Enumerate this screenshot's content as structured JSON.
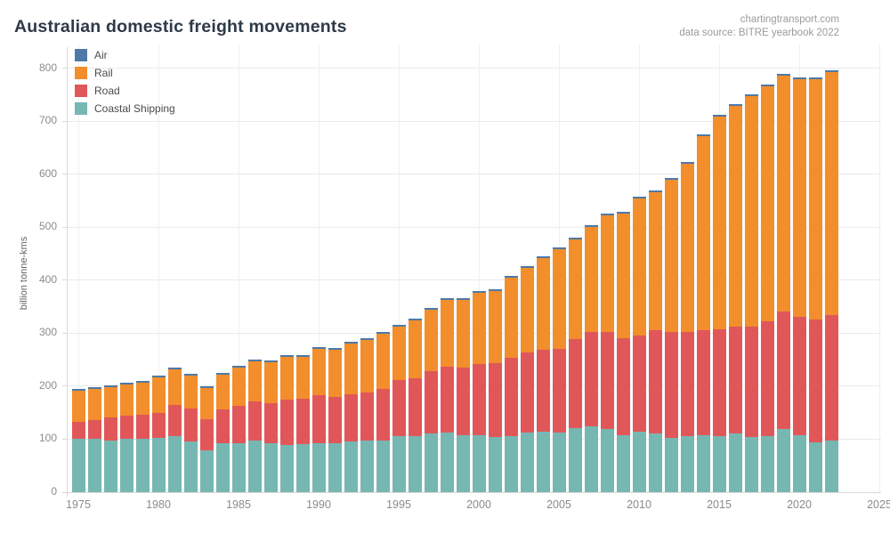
{
  "header": {
    "title": "Australian domestic freight movements",
    "credit_line1": "chartingtransport.com",
    "credit_line2": "data source: BITRE yearbook 2022"
  },
  "legend": {
    "position": "top-left",
    "items": [
      {
        "label": "Air",
        "color": "#4e79a7"
      },
      {
        "label": "Rail",
        "color": "#f28e2b"
      },
      {
        "label": "Road",
        "color": "#e15759"
      },
      {
        "label": "Coastal Shipping",
        "color": "#76b7b2"
      }
    ]
  },
  "y_axis": {
    "label": "billion tonne-kms",
    "ticks": [
      0,
      100,
      200,
      300,
      400,
      500,
      600,
      700,
      800
    ]
  },
  "x_axis": {
    "ticks": [
      1975,
      1980,
      1985,
      1990,
      1995,
      2000,
      2005,
      2010,
      2015,
      2020,
      2025
    ]
  },
  "chart_data": {
    "type": "bar",
    "stacked": true,
    "title": "Australian domestic freight movements",
    "xlabel": "",
    "ylabel": "billion tonne-kms",
    "ylim": [
      0,
      800
    ],
    "xlim": [
      1974,
      2025
    ],
    "grid": true,
    "legend_position": "top-left",
    "x": [
      1975,
      1976,
      1977,
      1978,
      1979,
      1980,
      1981,
      1982,
      1983,
      1984,
      1985,
      1986,
      1987,
      1988,
      1989,
      1990,
      1991,
      1992,
      1993,
      1994,
      1995,
      1996,
      1997,
      1998,
      1999,
      2000,
      2001,
      2002,
      2003,
      2004,
      2005,
      2006,
      2007,
      2008,
      2009,
      2010,
      2011,
      2012,
      2013,
      2014,
      2015,
      2016,
      2017,
      2018,
      2019,
      2020,
      2021,
      2022
    ],
    "series": [
      {
        "name": "Coastal Shipping",
        "color": "#76b7b2",
        "values": [
          100,
          100,
          97,
          100,
          100,
          102,
          106,
          96,
          79,
          93,
          93,
          98,
          92,
          89,
          90,
          93,
          93,
          96,
          97,
          98,
          105,
          105,
          111,
          113,
          107,
          107,
          104,
          106,
          112,
          115,
          112,
          121,
          125,
          119,
          107,
          115,
          111,
          103,
          105,
          107,
          106,
          110,
          104,
          106,
          119,
          107,
          94,
          97
        ]
      },
      {
        "name": "Road",
        "color": "#e15759",
        "values": [
          33,
          36,
          44,
          45,
          46,
          48,
          59,
          62,
          58,
          64,
          70,
          73,
          76,
          85,
          87,
          90,
          86,
          88,
          91,
          97,
          107,
          110,
          117,
          123,
          128,
          135,
          140,
          147,
          151,
          154,
          159,
          167,
          177,
          184,
          183,
          180,
          195,
          199,
          198,
          198,
          202,
          202,
          209,
          216,
          222,
          223,
          232,
          237
        ]
      },
      {
        "name": "Rail",
        "color": "#f28e2b",
        "values": [
          58,
          59,
          57,
          59,
          61,
          67,
          66,
          62,
          59,
          65,
          72,
          76,
          77,
          81,
          79,
          87,
          89,
          97,
          99,
          104,
          101,
          109,
          116,
          126,
          127,
          134,
          135,
          151,
          160,
          172,
          187,
          189,
          199,
          220,
          236,
          259,
          260,
          288,
          317,
          366,
          400,
          416,
          434,
          443,
          444,
          449,
          453,
          459
        ]
      },
      {
        "name": "Air",
        "color": "#4e79a7",
        "values": [
          2,
          2,
          2,
          2,
          2,
          2,
          2,
          2,
          2,
          2,
          2,
          2,
          2,
          2,
          2,
          2,
          2,
          2,
          2,
          2,
          2,
          2,
          2,
          2,
          2,
          2,
          2,
          2,
          2,
          2,
          2,
          2,
          2,
          2,
          2,
          2,
          2,
          2,
          2,
          2,
          2,
          2,
          2,
          2,
          2,
          2,
          2,
          2
        ]
      }
    ]
  }
}
